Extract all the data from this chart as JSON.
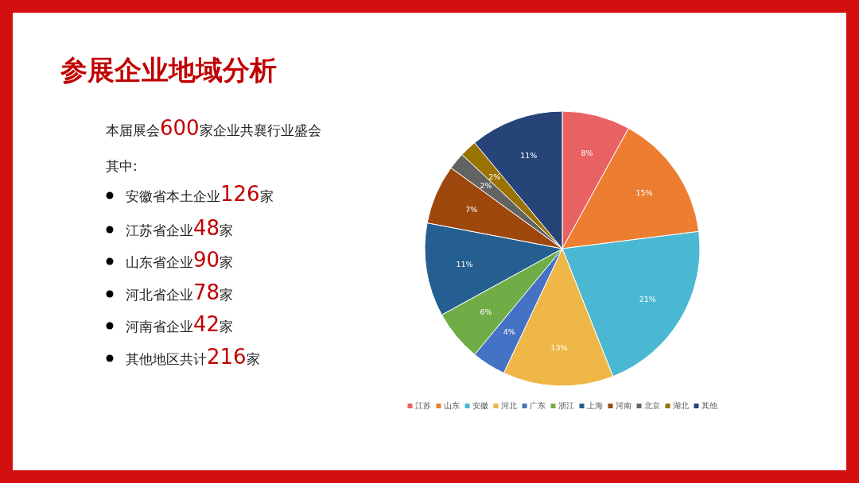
{
  "chart_data": {
    "type": "pie",
    "title": "参展企业地域分析",
    "categories": [
      "江苏",
      "山东",
      "安徽",
      "河北",
      "广东",
      "浙江",
      "上海",
      "河南",
      "北京",
      "湖北",
      "其他"
    ],
    "values": [
      8,
      15,
      21,
      13,
      4,
      6,
      11,
      7,
      2,
      2,
      11
    ],
    "value_labels": [
      "8%",
      "15%",
      "21%",
      "13%",
      "4%",
      "6%",
      "11%",
      "7%",
      "2%",
      "2%",
      "11%"
    ],
    "colors": [
      "#e86263",
      "#ed7d31",
      "#4bb8d3",
      "#efb747",
      "#4472c4",
      "#70ad47",
      "#255e91",
      "#9e480e",
      "#636363",
      "#997300",
      "#264478"
    ],
    "legend": "bottom",
    "annotations": [
      "本届展会600家企业共襄行业盛会",
      "其中:",
      "安徽省本土企业126家",
      "江苏省企业48家",
      "山东省企业90家",
      "河北省企业78家",
      "河南省企业42家",
      "其他地区共计216家"
    ]
  }
}
